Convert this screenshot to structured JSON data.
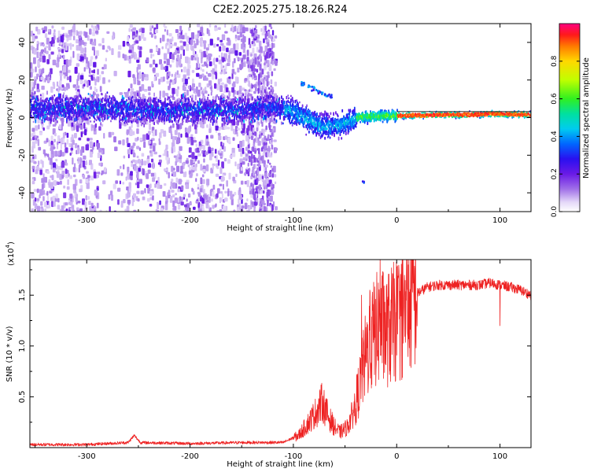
{
  "figure": {
    "title": "C2E2.2025.275.18.26.R24"
  },
  "chart_data": [
    {
      "type": "heatmap",
      "name": "spectrogram",
      "title": "C2E2.2025.275.18.26.R24",
      "xlabel": "Height of straight line (km)",
      "ylabel": "Frequency (Hz)",
      "xlim": [
        -355,
        130
      ],
      "ylim": [
        -50,
        50
      ],
      "xticks": [
        -300,
        -200,
        -100,
        0,
        100
      ],
      "yticks": [
        -40,
        -20,
        0,
        20,
        40
      ],
      "xtick_labels": [
        "-300",
        "-200",
        "-100",
        "0",
        "100"
      ],
      "ytick_labels": [
        "-40",
        "-20",
        "0",
        "20",
        "40"
      ],
      "colorbar": {
        "label": "Normalized spectral amplitude",
        "range": [
          0,
          1
        ],
        "ticks": [
          0.0,
          0.2,
          0.4,
          0.6,
          0.8
        ],
        "tick_labels": [
          "0.0",
          "0.2",
          "0.4",
          "0.6",
          "0.8"
        ],
        "colors": [
          "#ffffff",
          "#d8c8f4",
          "#8a2be2",
          "#3a1cf0",
          "#0050ff",
          "#00c8ff",
          "#00e0a0",
          "#40ff20",
          "#c8ff00",
          "#ffe000",
          "#ff8000",
          "#ff2000",
          "#ff0080"
        ]
      },
      "centerline": [
        [
          -355,
          5
        ],
        [
          -300,
          5
        ],
        [
          -250,
          4
        ],
        [
          -200,
          4
        ],
        [
          -150,
          4
        ],
        [
          -120,
          6
        ],
        [
          -100,
          3
        ],
        [
          -90,
          0
        ],
        [
          -80,
          -3
        ],
        [
          -70,
          -5
        ],
        [
          -60,
          -4
        ],
        [
          -50,
          -3
        ],
        [
          -40,
          0
        ],
        [
          -30,
          0.5
        ],
        [
          -20,
          0.8
        ],
        [
          -10,
          1
        ],
        [
          0,
          1
        ],
        [
          25,
          1.2
        ],
        [
          50,
          1.5
        ],
        [
          75,
          1.5
        ],
        [
          90,
          2
        ],
        [
          130,
          1.5
        ]
      ],
      "notable_features": [
        {
          "x": -78,
          "freq": 15,
          "desc": "upper branch feature"
        },
        {
          "x": -33,
          "freq": -34,
          "desc": "isolated spot"
        }
      ]
    },
    {
      "type": "line",
      "name": "snr",
      "xlabel": "Height of straight line (km)",
      "ylabel": "SNR (10 * v/v)",
      "y_multiplier": "(x10",
      "y_multiplier_exp": "4",
      "xlim": [
        -355,
        130
      ],
      "ylim": [
        0,
        1.85
      ],
      "xticks": [
        -300,
        -200,
        -100,
        0,
        100
      ],
      "yticks": [
        0.5,
        1.0,
        1.5
      ],
      "xtick_labels": [
        "-300",
        "-200",
        "-100",
        "0",
        "100"
      ],
      "ytick_labels": [
        "0.5",
        "1.0",
        "1.5"
      ],
      "color": "#ee2222",
      "envelope": [
        [
          -355,
          0.03
        ],
        [
          -300,
          0.03
        ],
        [
          -260,
          0.05
        ],
        [
          -254,
          0.12
        ],
        [
          -248,
          0.05
        ],
        [
          -200,
          0.04
        ],
        [
          -150,
          0.05
        ],
        [
          -110,
          0.05
        ],
        [
          -95,
          0.12
        ],
        [
          -85,
          0.25
        ],
        [
          -78,
          0.35
        ],
        [
          -72,
          0.45
        ],
        [
          -66,
          0.3
        ],
        [
          -60,
          0.2
        ],
        [
          -55,
          0.15
        ],
        [
          -48,
          0.2
        ],
        [
          -42,
          0.35
        ],
        [
          -36,
          0.6
        ],
        [
          -30,
          0.9
        ],
        [
          -25,
          1.05
        ],
        [
          -20,
          1.15
        ],
        [
          -15,
          1.2
        ],
        [
          -10,
          1.15
        ],
        [
          -5,
          1.2
        ],
        [
          0,
          1.25
        ],
        [
          5,
          1.3
        ],
        [
          10,
          1.35
        ],
        [
          15,
          1.45
        ],
        [
          20,
          1.52
        ],
        [
          30,
          1.58
        ],
        [
          40,
          1.6
        ],
        [
          60,
          1.6
        ],
        [
          80,
          1.6
        ],
        [
          90,
          1.62
        ],
        [
          100,
          1.6
        ],
        [
          110,
          1.58
        ],
        [
          120,
          1.55
        ],
        [
          130,
          1.5
        ]
      ],
      "peaks": [
        {
          "x": -16,
          "y": 1.85
        },
        {
          "x": -26,
          "y": 1.55
        },
        {
          "x": -34,
          "y": 1.5
        },
        {
          "x": 100,
          "y": 1.2
        }
      ]
    }
  ]
}
